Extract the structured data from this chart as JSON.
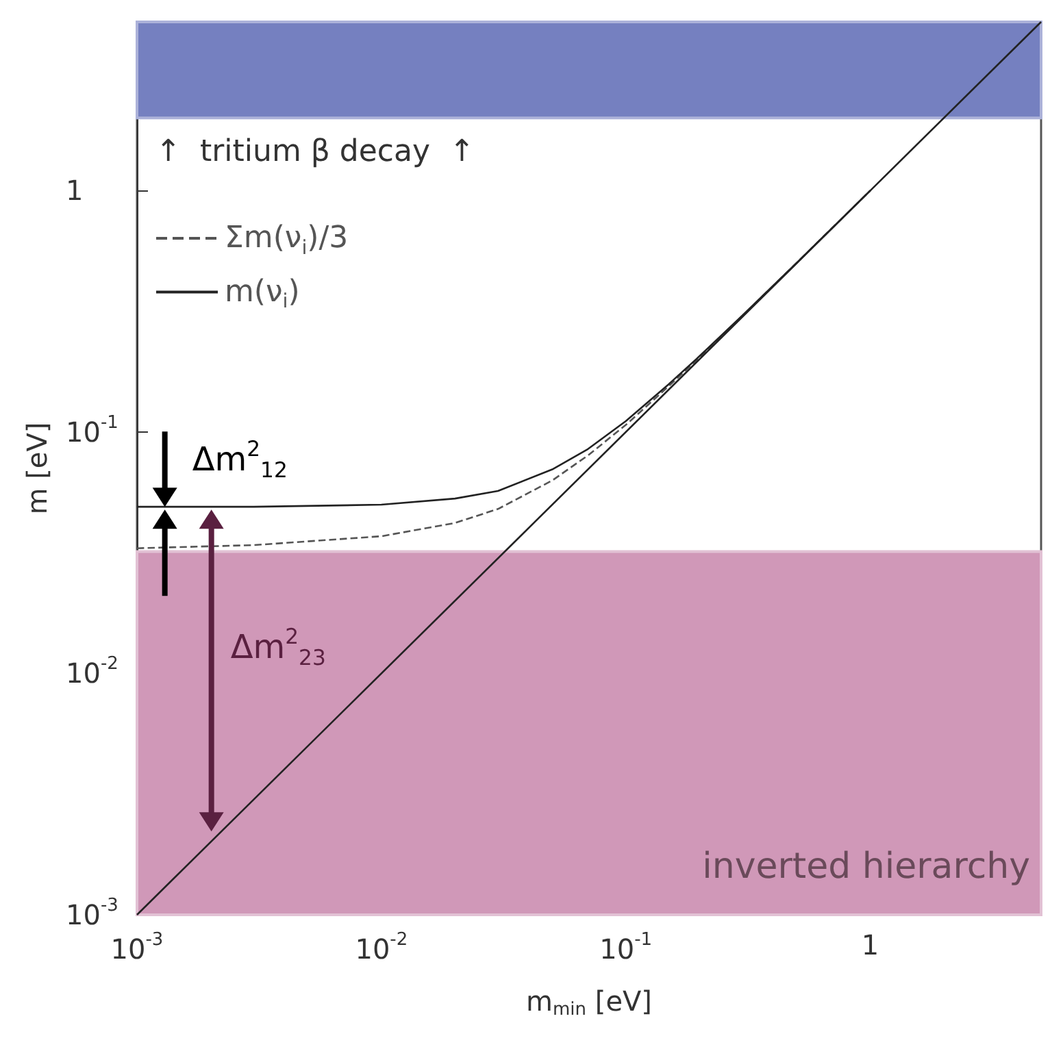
{
  "chart_data": {
    "type": "line",
    "xlabel": "m$_{min}$ [eV]",
    "ylabel": "m [eV]",
    "log": "xy",
    "xlim": [
      0.001,
      5
    ],
    "ylim": [
      0.001,
      5
    ],
    "xticks": [
      {
        "value": 0.001,
        "label": "10$^{-3}$"
      },
      {
        "value": 0.01,
        "label": "10$^{-2}$"
      },
      {
        "value": 0.1,
        "label": "10$^{-1}$"
      },
      1
    ],
    "yticks": [
      {
        "value": 0.001,
        "label": "10$^{-3}$"
      },
      {
        "value": 0.01,
        "label": "10$^{-2}$"
      },
      {
        "value": 0.1,
        "label": "10$^{-1}$"
      },
      1
    ],
    "grid": false,
    "legend": "top left",
    "marker": "none",
    "series": [
      {
        "name": "Σm(ν$_{i}$)/3",
        "color": "#555555",
        "line_style": "dashed",
        "x": [
          0.001,
          0.003,
          0.01,
          0.02,
          0.03,
          0.05,
          0.07,
          0.1,
          0.15,
          0.2,
          0.3,
          0.5,
          1
        ],
        "values": [
          0.033,
          0.034,
          0.037,
          0.042,
          0.048,
          0.063,
          0.08,
          0.107,
          0.155,
          0.204,
          0.303,
          0.502,
          1
        ]
      },
      {
        "name": "m(ν$_{i}$)",
        "color": "#222222",
        "line_style": "solid",
        "x": [
          0.001,
          0.003,
          0.01,
          0.02,
          0.03,
          0.05,
          0.07,
          0.1,
          0.15,
          0.2,
          0.3,
          0.5,
          1
        ],
        "values": [
          0.049,
          0.049,
          0.05,
          0.053,
          0.057,
          0.07,
          0.085,
          0.111,
          0.158,
          0.206,
          0.304,
          0.502,
          1
        ]
      },
      {
        "color": "#222222",
        "line_style": "solid",
        "x": [
          0.001,
          5
        ],
        "values": [
          0.001,
          5
        ]
      }
    ],
    "bands": [
      {
        "axis": "y",
        "from": 2,
        "to": 5,
        "label": "↑  tritium β decay  ↑",
        "color": "#7580c0"
      },
      {
        "axis": "y",
        "from": 0.001,
        "to": 0.032,
        "label": "inverted hierarchy",
        "color": "#d098b8"
      }
    ],
    "annotations": [
      {
        "text": "Δm$^{2}$$_{12}$",
        "x": 0.0013,
        "y": 0.049
      },
      "Δm$^{2}$$_{23}$"
    ]
  }
}
